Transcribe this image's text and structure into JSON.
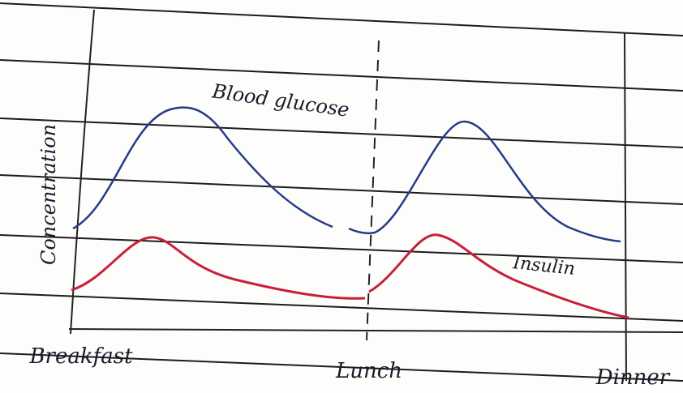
{
  "labels": {
    "blood_glucose": "Blood glucose",
    "insulin": "Insulin",
    "y_axis": "Concentration"
  },
  "x_labels": [
    "Breakfast",
    "Lunch",
    "Dinner"
  ]
}
